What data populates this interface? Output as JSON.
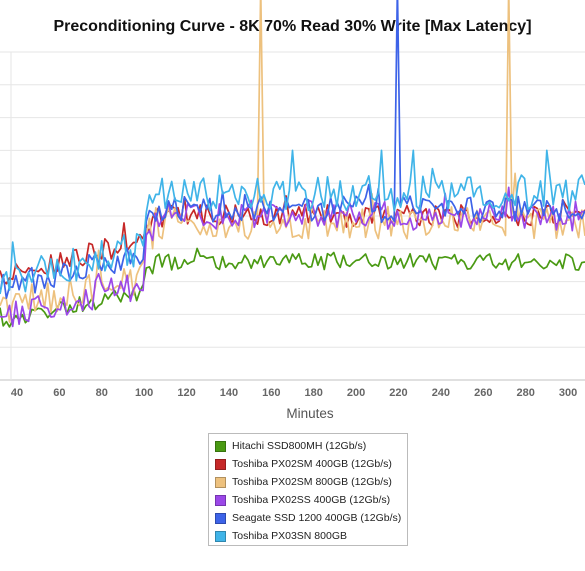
{
  "chart_data": {
    "type": "line",
    "title": "Preconditioning Curve - 8K 70% Read 30% Write [Max Latency]",
    "xlabel": "Minutes",
    "ylabel": "",
    "xlim": [
      32,
      308
    ],
    "ylim": [
      0,
      10
    ],
    "x_ticks": [
      40,
      60,
      80,
      100,
      120,
      140,
      160,
      180,
      200,
      220,
      240,
      260,
      280,
      300
    ],
    "grid": true,
    "legend_position": "bottom",
    "series": [
      {
        "name": "Hitachi SSD800MH (12Gb/s)",
        "color": "#4a9a13",
        "start": 1.8,
        "level": 3.6,
        "noise": 0.25,
        "spikes": []
      },
      {
        "name": "Toshiba PX02SM 400GB (12Gb/s)",
        "color": "#c62828",
        "start": 3.2,
        "level": 5.0,
        "noise": 0.35,
        "spikes": []
      },
      {
        "name": "Toshiba PX02SM 800GB (12Gb/s)",
        "color": "#edc17e",
        "start": 2.2,
        "level": 4.8,
        "noise": 0.5,
        "spikes": [
          [
            154,
            12
          ],
          [
            272,
            12
          ],
          [
            275,
            6.3
          ]
        ]
      },
      {
        "name": "Toshiba PX02SS 400GB (12Gb/s)",
        "color": "#9b47e8",
        "start": 2.0,
        "level": 5.0,
        "noise": 0.45,
        "spikes": []
      },
      {
        "name": "Seagate SSD 1200 400GB (12Gb/s)",
        "color": "#3d63e8",
        "start": 2.8,
        "level": 5.2,
        "noise": 0.4,
        "spikes": [
          [
            219,
            12
          ]
        ]
      },
      {
        "name": "Toshiba PX03SN 800GB",
        "color": "#40b4e8",
        "start": 3.0,
        "level": 5.7,
        "noise": 0.55,
        "spikes": [
          [
            170,
            7.0
          ],
          [
            212,
            7.0
          ],
          [
            226,
            7.0
          ],
          [
            290,
            7.0
          ]
        ]
      }
    ]
  }
}
